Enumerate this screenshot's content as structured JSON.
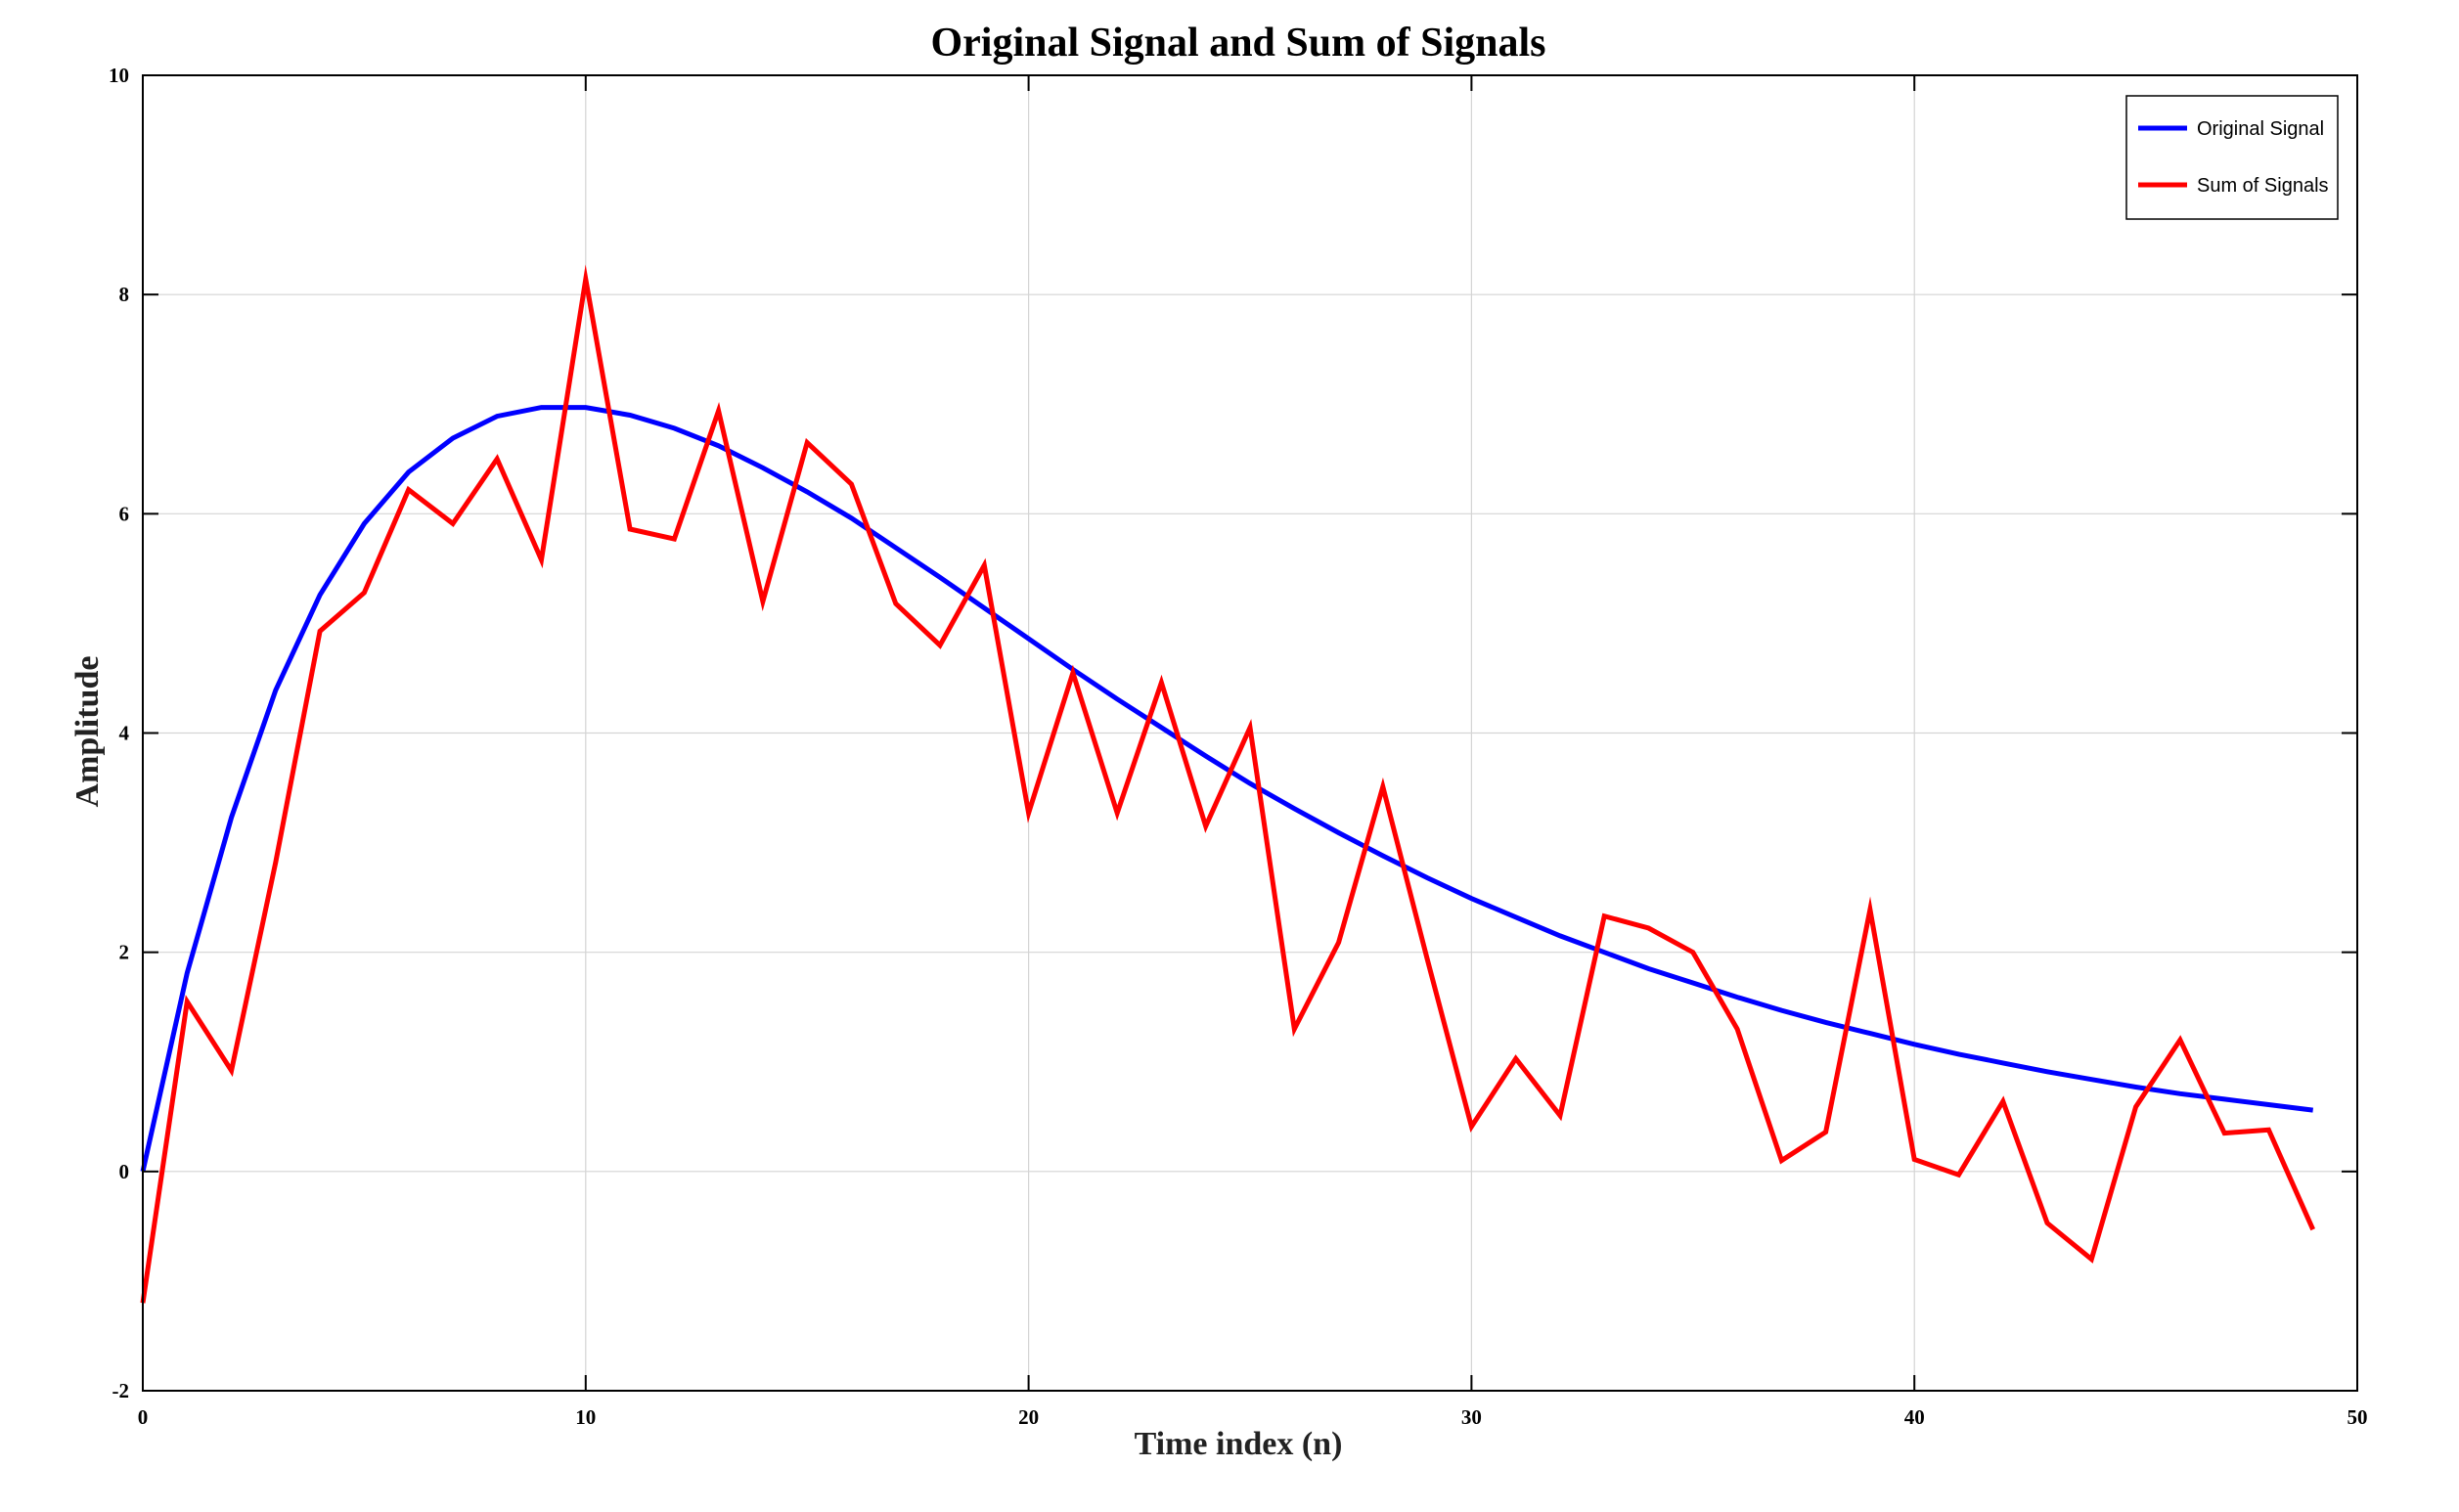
{
  "chart_data": {
    "type": "line",
    "title": "Original Signal and Sum of Signals",
    "xlabel": "Time index (n)",
    "ylabel": "Amplitude",
    "xlim": [
      0,
      50
    ],
    "ylim": [
      -2,
      10
    ],
    "xticks": [
      0,
      10,
      20,
      30,
      40,
      50
    ],
    "yticks": [
      -2,
      0,
      2,
      4,
      6,
      8,
      10
    ],
    "grid": true,
    "legend_position": "top-right",
    "x": [
      0,
      1,
      2,
      3,
      4,
      5,
      6,
      7,
      8,
      9,
      10,
      11,
      12,
      13,
      14,
      15,
      16,
      17,
      18,
      19,
      20,
      21,
      22,
      23,
      24,
      25,
      26,
      27,
      28,
      29,
      30,
      31,
      32,
      33,
      34,
      35,
      36,
      37,
      38,
      39,
      40,
      41,
      42,
      43,
      44,
      45,
      46,
      47,
      48,
      49
    ],
    "series": [
      {
        "name": "Original Signal",
        "color": "#0000FF",
        "values": [
          0.0,
          1.81,
          3.23,
          4.39,
          5.26,
          5.91,
          6.38,
          6.69,
          6.89,
          6.97,
          6.97,
          6.9,
          6.78,
          6.62,
          6.42,
          6.2,
          5.96,
          5.69,
          5.42,
          5.14,
          4.86,
          4.58,
          4.31,
          4.05,
          3.79,
          3.54,
          3.31,
          3.09,
          2.88,
          2.68,
          2.49,
          2.32,
          2.15,
          2.0,
          1.85,
          1.72,
          1.59,
          1.47,
          1.36,
          1.26,
          1.16,
          1.07,
          0.99,
          0.91,
          0.84,
          0.77,
          0.71,
          0.66,
          0.61,
          0.56
        ]
      },
      {
        "name": "Sum of Signals",
        "color": "#FF0000",
        "values": [
          -1.2,
          1.55,
          0.92,
          2.82,
          4.93,
          5.28,
          6.22,
          5.91,
          6.5,
          5.58,
          8.14,
          5.86,
          5.77,
          6.94,
          5.2,
          6.65,
          6.27,
          5.18,
          4.8,
          5.53,
          3.27,
          4.55,
          3.27,
          4.46,
          3.15,
          4.05,
          1.3,
          2.09,
          3.51,
          1.94,
          0.41,
          1.03,
          0.51,
          2.33,
          2.22,
          2.0,
          1.3,
          0.1,
          0.36,
          2.39,
          0.11,
          -0.03,
          0.64,
          -0.47,
          -0.8,
          0.59,
          1.2,
          0.35,
          0.38,
          -0.53
        ]
      }
    ]
  }
}
